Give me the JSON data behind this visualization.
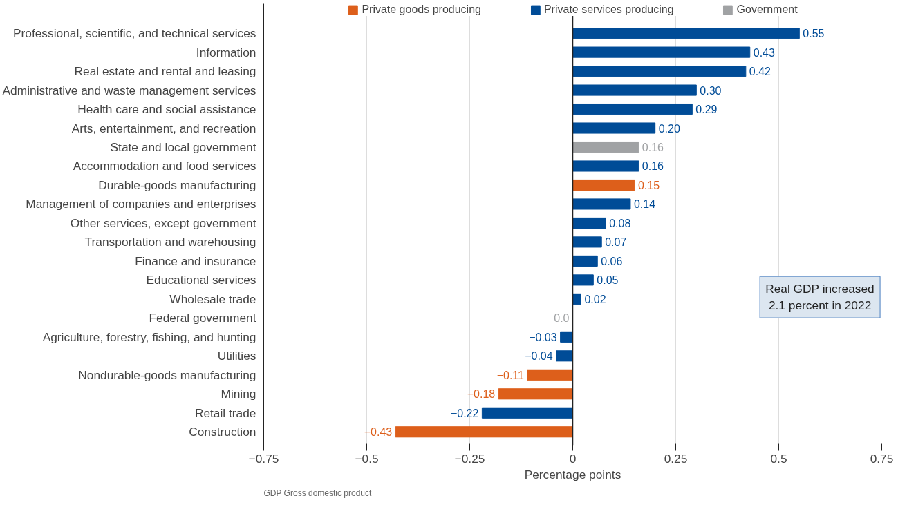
{
  "chart_data": {
    "type": "bar",
    "orientation": "horizontal",
    "categories": [
      "Professional, scientific, and technical services",
      "Information",
      "Real estate and rental and leasing",
      "Administrative and waste management services",
      "Health care and social assistance",
      "Arts, entertainment, and recreation",
      "State and local government",
      "Accommodation and food services",
      "Durable-goods manufacturing",
      "Management of companies and enterprises",
      "Other services, except government",
      "Transportation and warehousing",
      "Finance and insurance",
      "Educational services",
      "Wholesale trade",
      "Federal government",
      "Agriculture, forestry, fishing, and hunting",
      "Utilities",
      "Nondurable-goods manufacturing",
      "Mining",
      "Retail trade",
      "Construction"
    ],
    "series": [
      {
        "name": "Private goods producing",
        "color": "#dd5f1b",
        "values": [
          null,
          null,
          null,
          null,
          null,
          null,
          null,
          null,
          0.15,
          null,
          null,
          null,
          null,
          null,
          null,
          null,
          null,
          null,
          -0.11,
          -0.18,
          null,
          -0.43
        ],
        "value_labels": [
          null,
          null,
          null,
          null,
          null,
          null,
          null,
          null,
          "0.15",
          null,
          null,
          null,
          null,
          null,
          null,
          null,
          null,
          null,
          "−0.11",
          "−0.18",
          null,
          "−0.43"
        ]
      },
      {
        "name": "Private services producing",
        "color": "#004c97",
        "values": [
          0.55,
          0.43,
          0.42,
          0.3,
          0.29,
          0.2,
          null,
          0.16,
          null,
          0.14,
          0.08,
          0.07,
          0.06,
          0.05,
          0.02,
          null,
          -0.03,
          -0.04,
          null,
          null,
          -0.22,
          null
        ],
        "value_labels": [
          "0.55",
          "0.43",
          "0.42",
          "0.30",
          "0.29",
          "0.20",
          null,
          "0.16",
          null,
          "0.14",
          "0.08",
          "0.07",
          "0.06",
          "0.05",
          "0.02",
          null,
          "−0.03",
          "−0.04",
          null,
          null,
          "−0.22",
          null
        ]
      },
      {
        "name": "Government",
        "color": "#a0a2a4",
        "values": [
          null,
          null,
          null,
          null,
          null,
          null,
          0.16,
          null,
          null,
          null,
          null,
          null,
          null,
          null,
          null,
          0.0,
          null,
          null,
          null,
          null,
          null,
          null
        ],
        "value_labels": [
          null,
          null,
          null,
          null,
          null,
          null,
          "0.16",
          null,
          null,
          null,
          null,
          null,
          null,
          null,
          null,
          "0.0",
          null,
          null,
          null,
          null,
          null,
          null
        ]
      }
    ],
    "xlabel": "Percentage points",
    "xlim": [
      -0.75,
      0.75
    ],
    "xticks": [
      {
        "value": -0.75,
        "label": "−0.75"
      },
      {
        "value": -0.5,
        "label": "−0.5"
      },
      {
        "value": -0.25,
        "label": "−0.25"
      },
      0,
      0.25,
      0.5,
      0.75
    ],
    "grid": "x",
    "legend": "top",
    "ref_lines": [
      {
        "axis": "x",
        "value": 0,
        "color": "#222222"
      }
    ],
    "annotations": [
      "Real GDP increased\n2.1 percent in 2022",
      "GDP Gross domestic product"
    ]
  }
}
